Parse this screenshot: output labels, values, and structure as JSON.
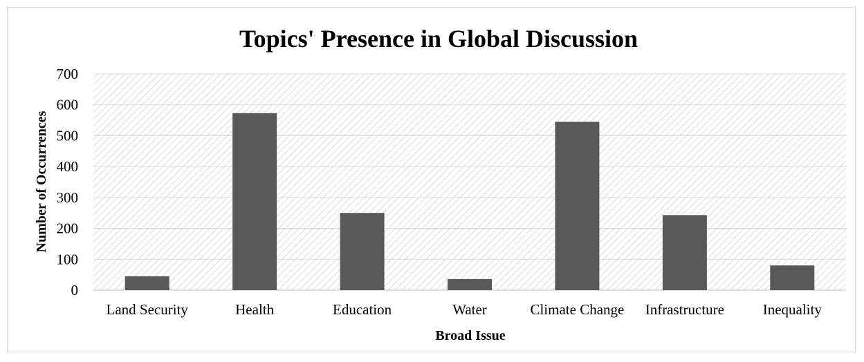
{
  "chart_data": {
    "type": "bar",
    "title": "Topics' Presence in Global Discussion",
    "xlabel": "Broad Issue",
    "ylabel": "Number of Occurrences",
    "categories": [
      "Land Security",
      "Health",
      "Education",
      "Water",
      "Climate Change",
      "Infrastructure",
      "Inequality"
    ],
    "values": [
      45,
      573,
      250,
      36,
      545,
      243,
      80
    ],
    "ylim": [
      0,
      700
    ],
    "yticks": [
      0,
      100,
      200,
      300,
      400,
      500,
      600,
      700
    ],
    "grid": true,
    "legend": "none",
    "bar_color": "#595959",
    "plot_background": "hatched-diagonal"
  }
}
